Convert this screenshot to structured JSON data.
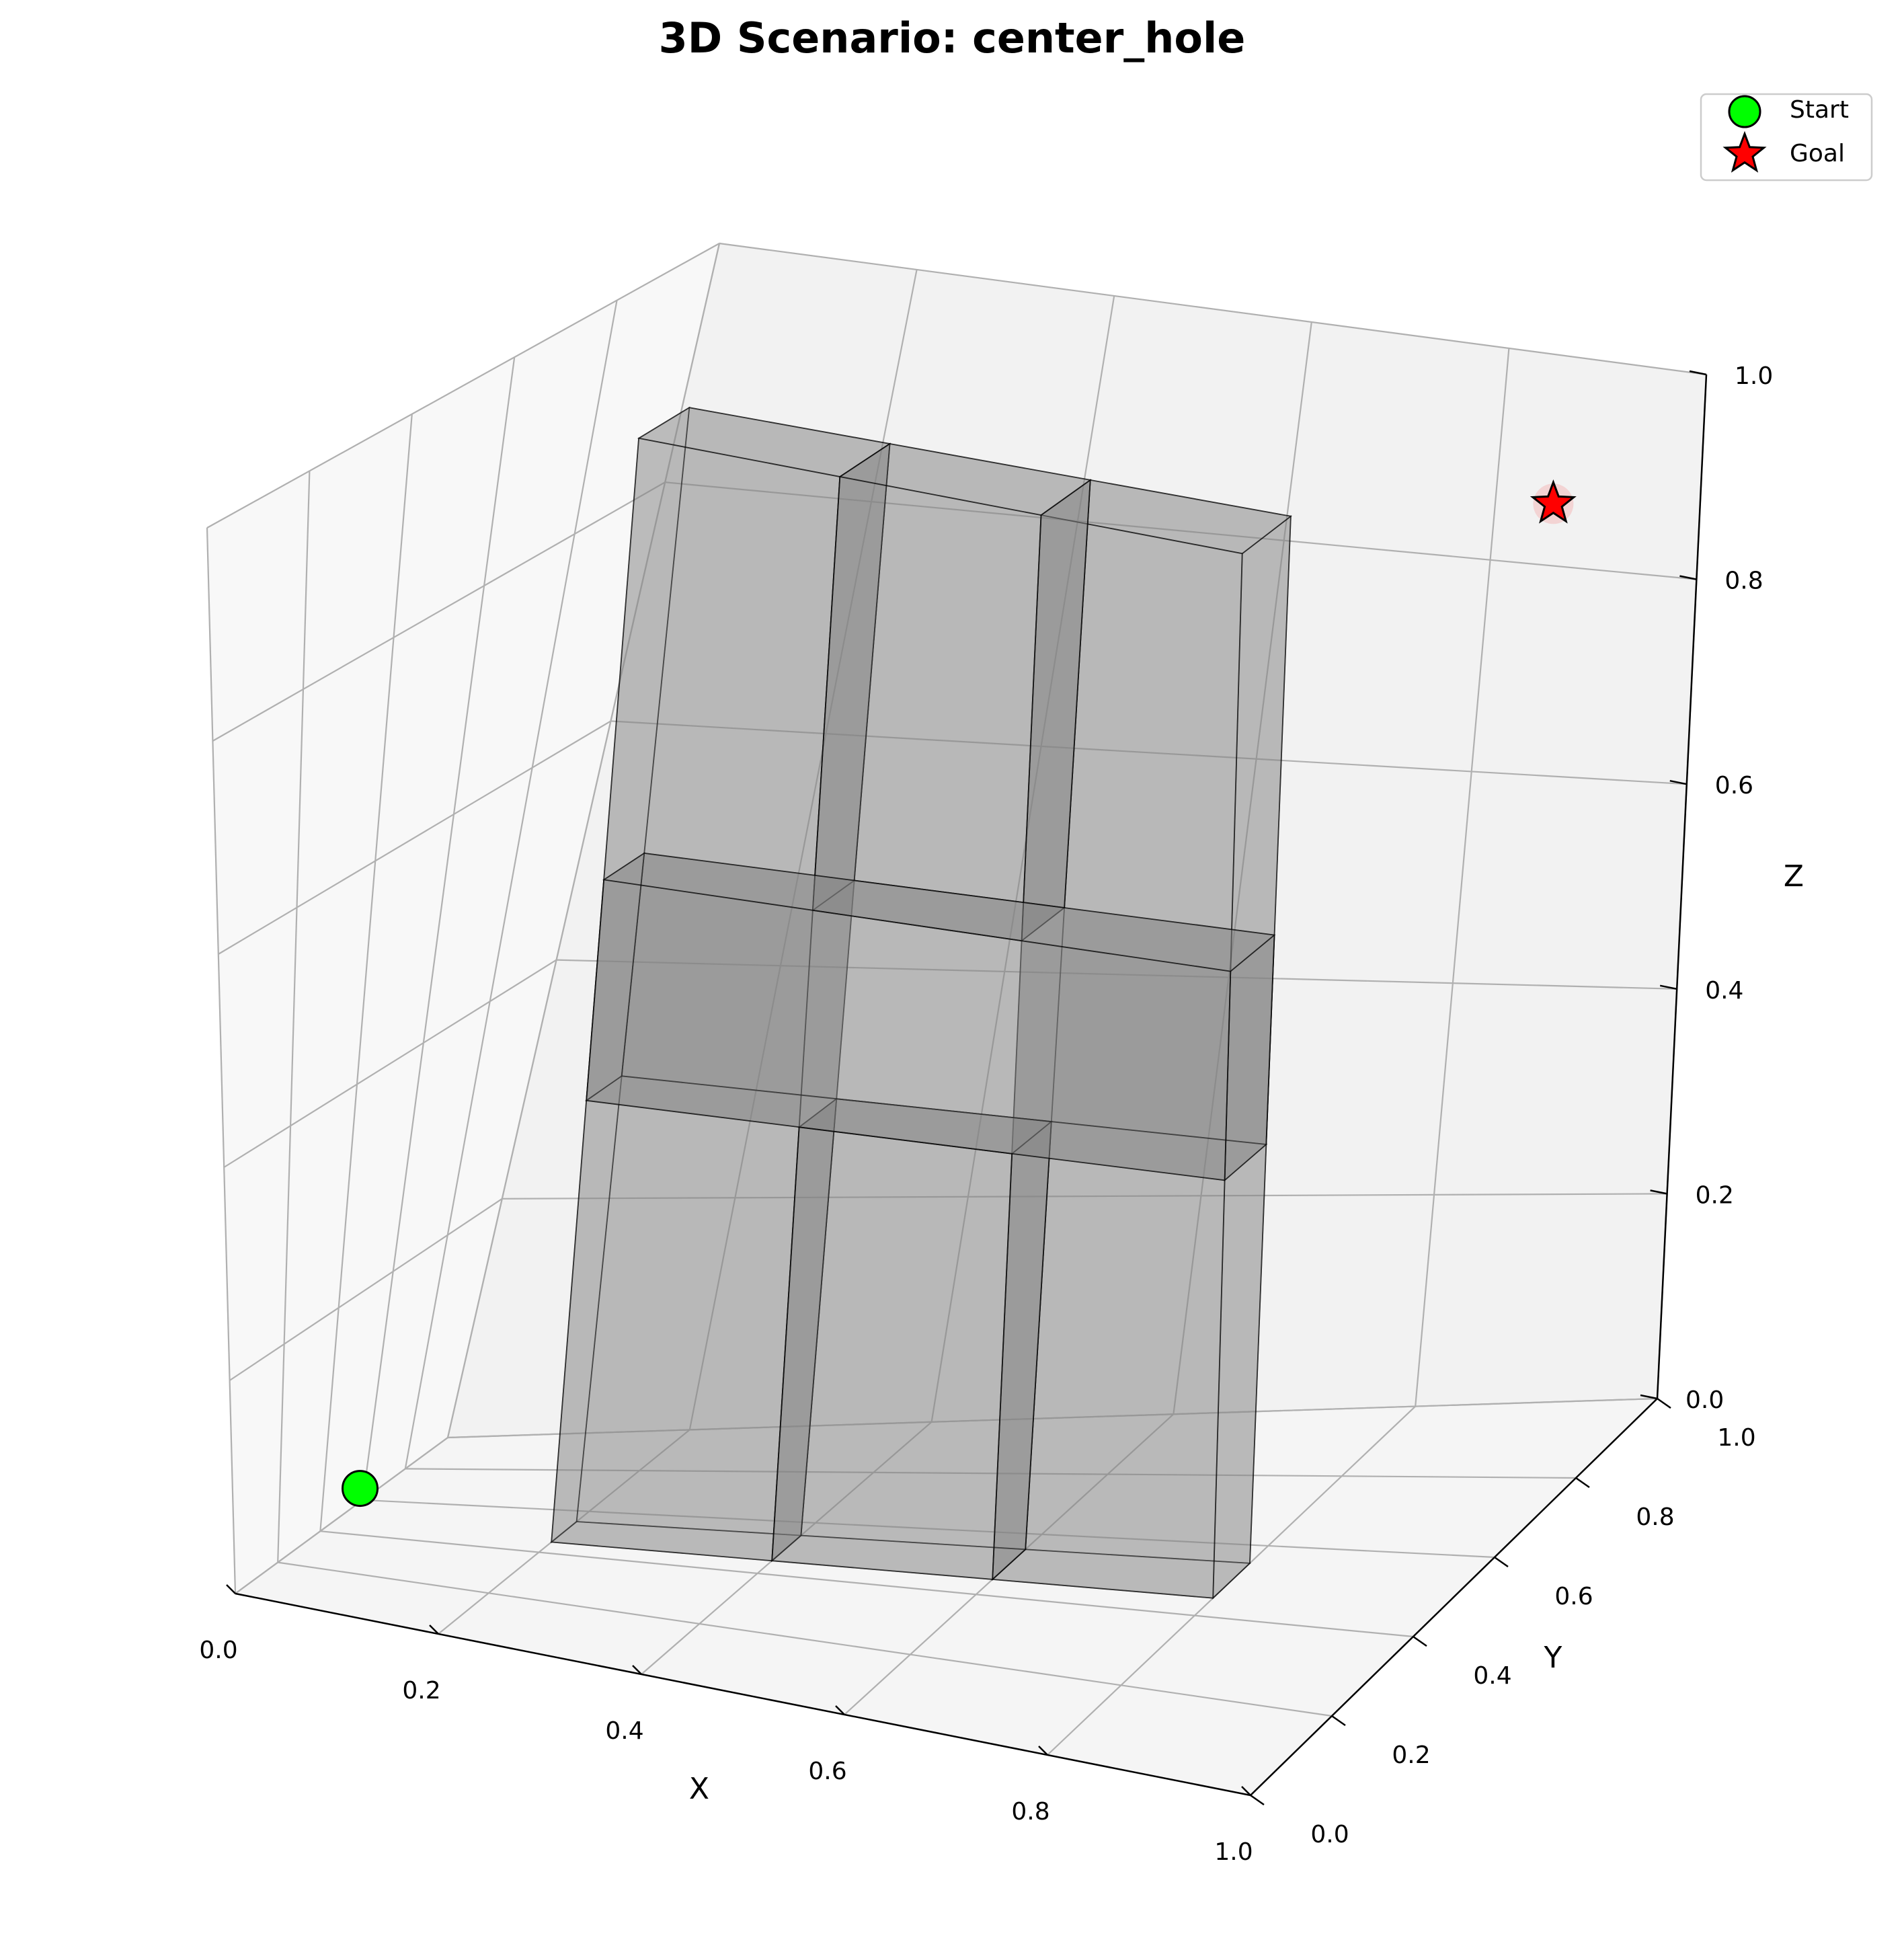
{
  "chart_data": {
    "type": "3d-scatter-with-boxes",
    "title": "3D Scenario: center_hole",
    "xlabel": "X",
    "ylabel": "Y",
    "zlabel": "Z",
    "xlim": [
      0.0,
      1.0
    ],
    "ylim": [
      0.0,
      1.0
    ],
    "zlim": [
      0.0,
      1.0
    ],
    "grid": true,
    "legend_position": "top-right",
    "x_ticks": [
      {
        "value": 0.0,
        "label": "0.0"
      },
      {
        "value": 0.2,
        "label": "0.2"
      },
      {
        "value": 0.4,
        "label": "0.4"
      },
      {
        "value": 0.6,
        "label": "0.6"
      },
      {
        "value": 0.8,
        "label": "0.8"
      },
      {
        "value": 1.0,
        "label": "1.0"
      }
    ],
    "y_ticks": [
      {
        "value": 0.0,
        "label": "0.0"
      },
      {
        "value": 0.2,
        "label": "0.2"
      },
      {
        "value": 0.4,
        "label": "0.4"
      },
      {
        "value": 0.6,
        "label": "0.6"
      },
      {
        "value": 0.8,
        "label": "0.8"
      },
      {
        "value": 1.0,
        "label": "1.0"
      }
    ],
    "z_ticks": [
      {
        "value": 0.0,
        "label": "0.0"
      },
      {
        "value": 0.2,
        "label": "0.2"
      },
      {
        "value": 0.4,
        "label": "0.4"
      },
      {
        "value": 0.6,
        "label": "0.6"
      },
      {
        "value": 0.8,
        "label": "0.8"
      },
      {
        "value": 1.0,
        "label": "1.0"
      }
    ],
    "series": [
      {
        "name": "Start",
        "marker": "circle",
        "color": "#00ff00",
        "points": [
          {
            "x": 0.1,
            "y": 0.1,
            "z": 0.1
          }
        ]
      },
      {
        "name": "Goal",
        "marker": "star",
        "color": "#ff0000",
        "points": [
          {
            "x": 0.9,
            "y": 0.9,
            "z": 0.9
          }
        ]
      }
    ],
    "obstacles": [
      {
        "xmin": 0.2,
        "xmax": 0.4,
        "ymin": 0.45,
        "ymax": 0.55,
        "zmin": 0.0,
        "zmax": 1.0,
        "color": "#808080"
      },
      {
        "xmin": 0.6,
        "xmax": 0.8,
        "ymin": 0.45,
        "ymax": 0.55,
        "zmin": 0.0,
        "zmax": 1.0,
        "color": "#808080"
      },
      {
        "xmin": 0.4,
        "xmax": 0.6,
        "ymin": 0.45,
        "ymax": 0.55,
        "zmin": 0.0,
        "zmax": 0.4,
        "color": "#808080"
      },
      {
        "xmin": 0.4,
        "xmax": 0.6,
        "ymin": 0.45,
        "ymax": 0.55,
        "zmin": 0.6,
        "zmax": 1.0,
        "color": "#808080"
      },
      {
        "xmin": 0.2,
        "xmax": 0.8,
        "ymin": 0.45,
        "ymax": 0.55,
        "zmin": 0.4,
        "zmax": 0.6,
        "color": "#808080"
      }
    ]
  }
}
